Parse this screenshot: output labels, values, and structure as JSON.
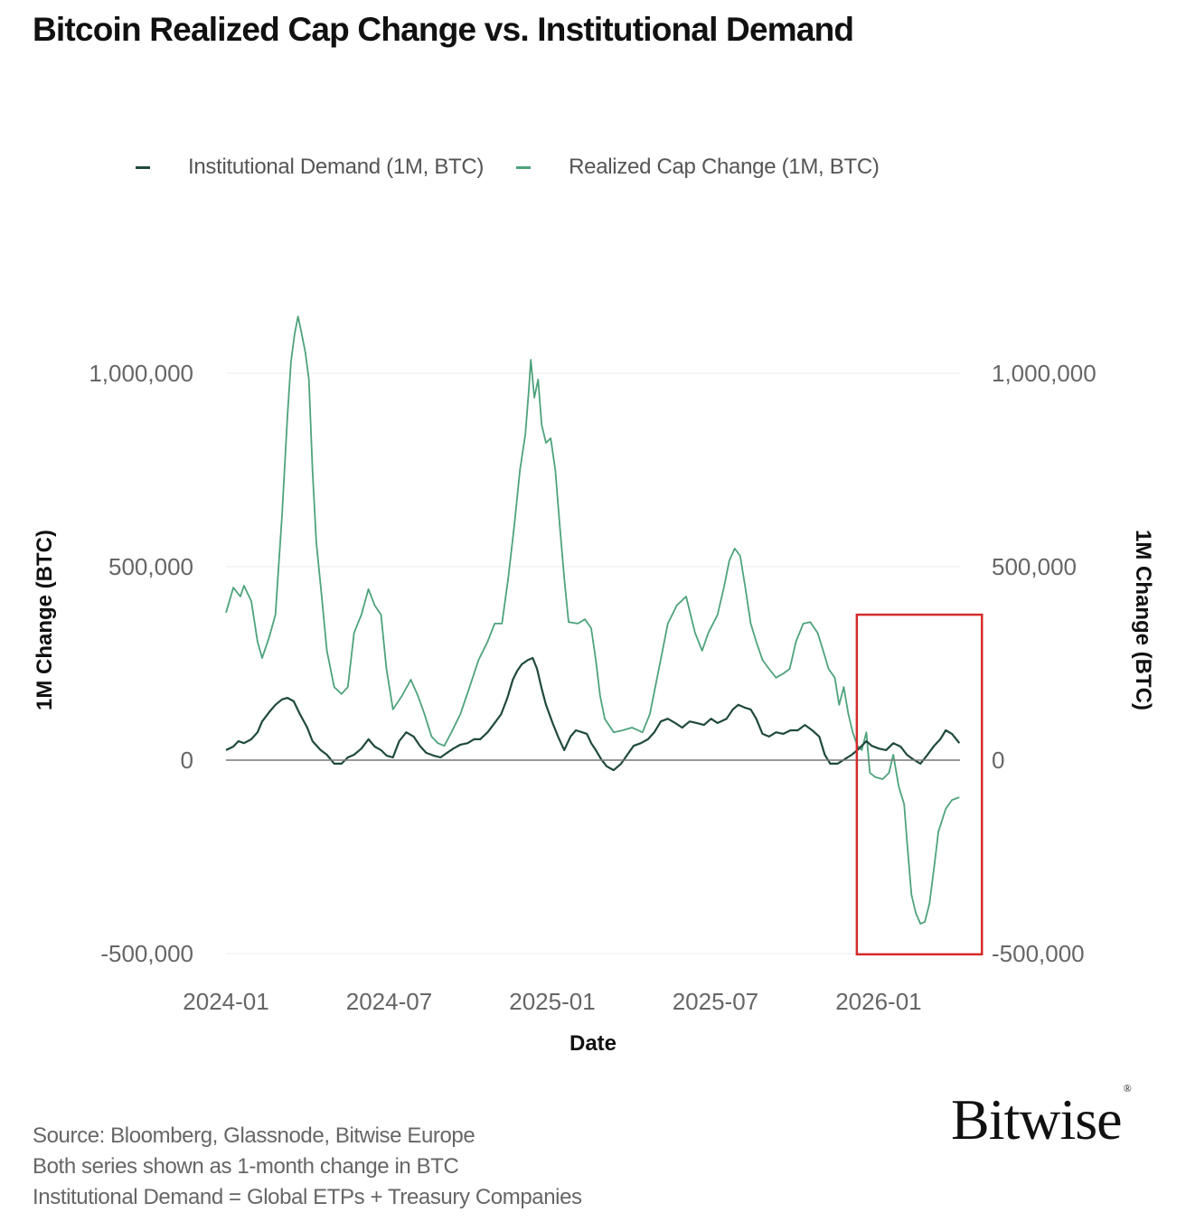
{
  "title": "Bitcoin Realized Cap Change vs. Institutional Demand",
  "colors": {
    "institutional": "#1f4a3c",
    "realized": "#4ea37c",
    "zero_line": "#777777",
    "grid": "#eeeeee",
    "highlight_box": "#d62b2b",
    "tick_text": "#666666"
  },
  "footer": {
    "lines": [
      "Source: Bloomberg, Glassnode, Bitwise Europe",
      "Both series shown as 1-month change in BTC",
      "Institutional Demand = Global ETPs + Treasury Companies"
    ]
  },
  "logo": {
    "text": "Bitwise",
    "mark": "®"
  },
  "chart_data": {
    "type": "line",
    "title": "Bitcoin Realized Cap Change vs. Institutional Demand",
    "xlabel": "Date",
    "ylabel": "1M Change (BTC)",
    "ylabel_right": "1M Change (BTC)",
    "x_unit": "months since 2024-01",
    "xlim": [
      0,
      27
    ],
    "ylim": [
      -520000,
      1200000
    ],
    "x_ticks": [
      {
        "value": 0,
        "label": "2024-01"
      },
      {
        "value": 6,
        "label": "2024-07"
      },
      {
        "value": 12,
        "label": "2025-01"
      },
      {
        "value": 18,
        "label": "2025-07"
      },
      {
        "value": 24,
        "label": "2026-01"
      }
    ],
    "y_ticks": [
      {
        "value": 1000000,
        "label": "1,000,000"
      },
      {
        "value": 500000,
        "label": "500,000"
      },
      {
        "value": 0,
        "label": "0"
      },
      {
        "value": -500000,
        "label": "-500,000"
      }
    ],
    "grid": true,
    "legend_position": "top",
    "annotations": [
      {
        "type": "rectangle",
        "x_range": [
          23.2,
          27.8
        ],
        "y_range": [
          -502000,
          376000
        ],
        "color": "#d62b2b",
        "note": "highlight of recent period"
      }
    ],
    "series": [
      {
        "name": "Institutional Demand (1M, BTC)",
        "color": "#1f4a3c",
        "x": [
          0.0,
          0.27,
          0.46,
          0.66,
          0.93,
          1.16,
          1.33,
          1.59,
          1.82,
          2.06,
          2.26,
          2.49,
          2.72,
          2.99,
          3.18,
          3.48,
          3.71,
          3.98,
          4.25,
          4.48,
          4.71,
          4.98,
          5.24,
          5.47,
          5.7,
          5.9,
          6.14,
          6.37,
          6.63,
          6.9,
          7.13,
          7.36,
          7.63,
          7.89,
          8.13,
          8.36,
          8.62,
          8.89,
          9.12,
          9.35,
          9.62,
          9.88,
          10.12,
          10.35,
          10.55,
          10.71,
          10.88,
          11.11,
          11.28,
          11.44,
          11.61,
          11.77,
          12.01,
          12.21,
          12.44,
          12.67,
          12.87,
          13.1,
          13.27,
          13.43,
          13.6,
          13.8,
          14.0,
          14.26,
          14.53,
          14.76,
          14.99,
          15.26,
          15.52,
          15.75,
          15.99,
          16.25,
          16.52,
          16.78,
          17.05,
          17.31,
          17.58,
          17.84,
          18.08,
          18.41,
          18.64,
          18.84,
          19.07,
          19.3,
          19.5,
          19.73,
          19.97,
          20.23,
          20.5,
          20.76,
          21.03,
          21.29,
          21.56,
          21.82,
          22.02,
          22.22,
          22.49,
          22.75,
          23.02,
          23.28,
          23.55,
          23.75,
          24.01,
          24.28,
          24.54,
          24.81,
          25.04,
          25.27,
          25.54,
          25.8,
          26.04,
          26.27,
          26.47,
          26.7,
          26.97
        ],
        "values": [
          26000,
          35000,
          49000,
          44000,
          54000,
          72000,
          100000,
          124000,
          143000,
          157000,
          161000,
          152000,
          119000,
          84000,
          49000,
          26000,
          14000,
          -9000,
          -9000,
          7000,
          14000,
          30000,
          54000,
          35000,
          26000,
          12000,
          7000,
          49000,
          72000,
          61000,
          37000,
          19000,
          12000,
          7000,
          19000,
          30000,
          40000,
          44000,
          54000,
          54000,
          72000,
          96000,
          119000,
          161000,
          208000,
          231000,
          248000,
          259000,
          264000,
          236000,
          185000,
          143000,
          96000,
          61000,
          26000,
          61000,
          77000,
          72000,
          68000,
          44000,
          26000,
          2000,
          -16000,
          -26000,
          -9000,
          14000,
          37000,
          44000,
          54000,
          72000,
          100000,
          107000,
          96000,
          84000,
          100000,
          96000,
          91000,
          107000,
          96000,
          107000,
          131000,
          143000,
          136000,
          131000,
          107000,
          68000,
          61000,
          72000,
          68000,
          77000,
          77000,
          91000,
          77000,
          61000,
          14000,
          -9000,
          -9000,
          2000,
          14000,
          30000,
          49000,
          37000,
          30000,
          26000,
          44000,
          35000,
          14000,
          2000,
          -9000,
          14000,
          37000,
          54000,
          77000,
          68000,
          44000
        ]
      },
      {
        "name": "Realized Cap Change (1M, BTC)",
        "color": "#4ea37c",
        "x": [
          0.0,
          0.27,
          0.53,
          0.66,
          0.93,
          1.16,
          1.33,
          1.59,
          1.82,
          2.06,
          2.26,
          2.39,
          2.52,
          2.65,
          2.79,
          2.92,
          3.05,
          3.18,
          3.32,
          3.52,
          3.71,
          3.98,
          4.25,
          4.48,
          4.71,
          4.98,
          5.24,
          5.47,
          5.7,
          5.9,
          6.14,
          6.47,
          6.8,
          7.06,
          7.3,
          7.56,
          7.79,
          8.03,
          8.29,
          8.62,
          8.96,
          9.29,
          9.62,
          9.88,
          10.15,
          10.38,
          10.61,
          10.81,
          11.01,
          11.14,
          11.21,
          11.34,
          11.48,
          11.61,
          11.77,
          11.94,
          12.11,
          12.27,
          12.44,
          12.6,
          12.94,
          13.2,
          13.43,
          13.6,
          13.76,
          13.93,
          14.26,
          14.59,
          14.93,
          15.32,
          15.59,
          15.92,
          16.25,
          16.58,
          16.92,
          17.25,
          17.51,
          17.74,
          18.08,
          18.31,
          18.51,
          18.71,
          18.91,
          19.1,
          19.3,
          19.5,
          19.73,
          19.97,
          20.23,
          20.5,
          20.73,
          20.96,
          21.23,
          21.49,
          21.76,
          21.96,
          22.16,
          22.39,
          22.55,
          22.72,
          22.89,
          23.05,
          23.22,
          23.38,
          23.55,
          23.68,
          23.88,
          24.15,
          24.38,
          24.54,
          24.74,
          24.94,
          25.07,
          25.21,
          25.37,
          25.54,
          25.7,
          25.87,
          26.04,
          26.2,
          26.47,
          26.7,
          26.97
        ],
        "values": [
          381000,
          446000,
          423000,
          451000,
          411000,
          306000,
          264000,
          318000,
          376000,
          633000,
          890000,
          1030000,
          1100000,
          1147000,
          1100000,
          1054000,
          984000,
          750000,
          563000,
          423000,
          283000,
          189000,
          171000,
          189000,
          329000,
          376000,
          442000,
          400000,
          376000,
          236000,
          131000,
          166000,
          208000,
          166000,
          119000,
          61000,
          44000,
          37000,
          72000,
          119000,
          189000,
          259000,
          306000,
          353000,
          353000,
          470000,
          610000,
          750000,
          843000,
          960000,
          1035000,
          937000,
          984000,
          867000,
          820000,
          832000,
          750000,
          610000,
          470000,
          357000,
          353000,
          364000,
          341000,
          259000,
          166000,
          107000,
          72000,
          77000,
          84000,
          72000,
          119000,
          236000,
          353000,
          400000,
          423000,
          329000,
          283000,
          329000,
          376000,
          446000,
          516000,
          547000,
          528000,
          446000,
          353000,
          306000,
          259000,
          236000,
          213000,
          224000,
          236000,
          306000,
          353000,
          357000,
          329000,
          283000,
          236000,
          213000,
          143000,
          189000,
          119000,
          72000,
          37000,
          26000,
          72000,
          -33000,
          -44000,
          -49000,
          -33000,
          14000,
          -68000,
          -114000,
          -231000,
          -348000,
          -395000,
          -423000,
          -418000,
          -371000,
          -278000,
          -185000,
          -126000,
          -103000,
          -96000
        ]
      }
    ]
  }
}
